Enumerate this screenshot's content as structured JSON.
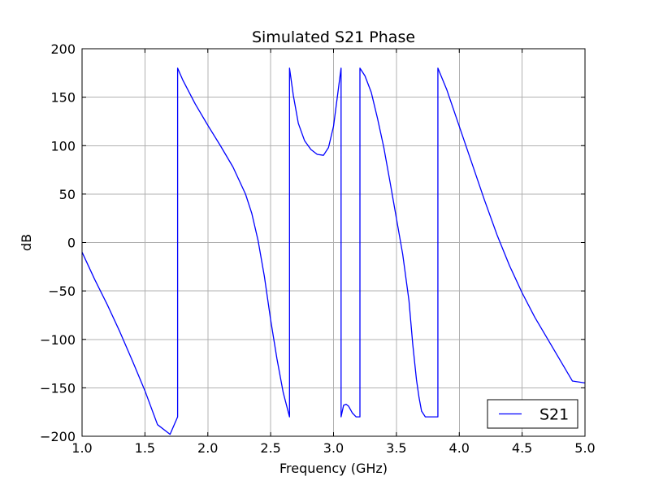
{
  "chart_data": {
    "type": "line",
    "title": "Simulated S21 Phase",
    "xlabel": "Frequency (GHz)",
    "ylabel": "dB",
    "xlim": [
      1.0,
      5.0
    ],
    "ylim": [
      -200,
      200
    ],
    "x_ticks": [
      1.0,
      1.5,
      2.0,
      2.5,
      3.0,
      3.5,
      4.0,
      4.5,
      5.0
    ],
    "x_tick_labels": [
      "1.0",
      "1.5",
      "2.0",
      "2.5",
      "3.0",
      "3.5",
      "4.0",
      "4.5",
      "5.0"
    ],
    "y_ticks": [
      -200,
      -150,
      -100,
      -50,
      0,
      50,
      100,
      150,
      200
    ],
    "y_tick_labels": [
      "−200",
      "−150",
      "−100",
      "−50",
      "0",
      "50",
      "100",
      "150",
      "200"
    ],
    "grid": true,
    "legend_position": "lower-right",
    "series": [
      {
        "name": "S21",
        "color": "#0000ff",
        "x": [
          1.0,
          1.1,
          1.2,
          1.3,
          1.4,
          1.5,
          1.6,
          1.7,
          1.76,
          1.76,
          1.8,
          1.9,
          2.0,
          2.1,
          2.2,
          2.3,
          2.35,
          2.4,
          2.45,
          2.5,
          2.55,
          2.6,
          2.65,
          2.65,
          2.68,
          2.72,
          2.77,
          2.82,
          2.87,
          2.92,
          2.96,
          3.0,
          3.03,
          3.05,
          3.06,
          3.06,
          3.08,
          3.1,
          3.12,
          3.15,
          3.18,
          3.21,
          3.21,
          3.25,
          3.3,
          3.35,
          3.4,
          3.45,
          3.5,
          3.55,
          3.6,
          3.63,
          3.66,
          3.68,
          3.7,
          3.73,
          3.76,
          3.79,
          3.82,
          3.83,
          3.83,
          3.9,
          4.0,
          4.1,
          4.2,
          4.3,
          4.4,
          4.5,
          4.6,
          4.7,
          4.8,
          4.9,
          5.0
        ],
        "y": [
          -10,
          -38,
          -64,
          -92,
          -122,
          -153,
          -188,
          -198,
          -180,
          180,
          168,
          143,
          121,
          100,
          78,
          50,
          30,
          2,
          -35,
          -80,
          -120,
          -155,
          -180,
          180,
          152,
          123,
          105,
          96,
          91,
          90,
          98,
          120,
          150,
          170,
          180,
          -180,
          -168,
          -167,
          -169,
          -176,
          -180,
          -180,
          180,
          172,
          155,
          128,
          98,
          62,
          25,
          -12,
          -60,
          -105,
          -142,
          -160,
          -174,
          -180,
          -180,
          -180,
          -180,
          -180,
          180,
          158,
          120,
          82,
          44,
          8,
          -24,
          -52,
          -77,
          -99,
          -121,
          -143,
          -145
        ]
      }
    ]
  }
}
